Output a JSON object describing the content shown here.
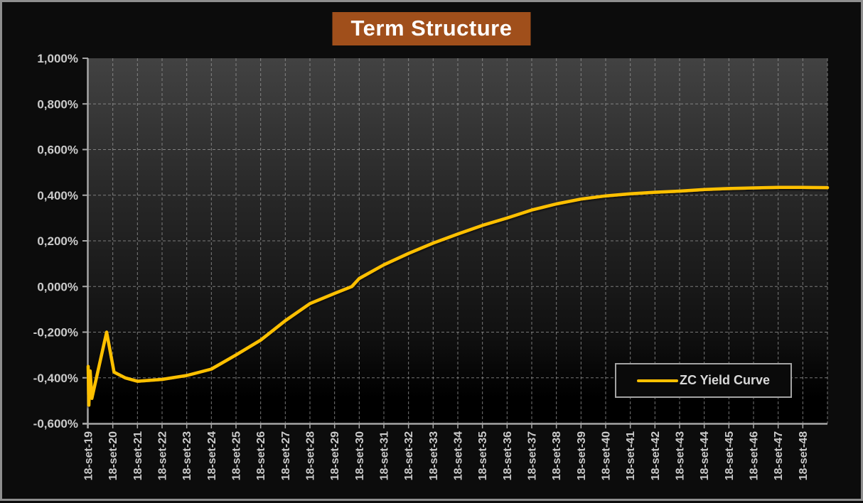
{
  "title": "Term Structure",
  "legend": {
    "label": "ZC Yield Curve"
  },
  "colors": {
    "title_bg": "#A04F1B",
    "title_text": "#FFFFFF",
    "curve": "#FFC000",
    "axis": "#A6A6A6",
    "grid": "#9B9B9B",
    "label_text": "#CBCBCB",
    "legend_text": "#D9D9D9",
    "plot_bg_top": "#424242",
    "plot_bg_bottom": "#000000",
    "page_bg": "#0C0C0C"
  },
  "chart_data": {
    "type": "line",
    "title": "Term Structure",
    "xlabel": "",
    "ylabel": "",
    "grid": true,
    "legend_position": "inside-bottom-right",
    "y_format": "percent_comma_decimal",
    "ylim": [
      -0.6,
      1.0
    ],
    "xlim_years": [
      0,
      30
    ],
    "y_tick_values": [
      1.0,
      0.8,
      0.6,
      0.4,
      0.2,
      0.0,
      -0.2,
      -0.4,
      -0.6
    ],
    "y_tick_labels": [
      "1,000%",
      "0,800%",
      "0,600%",
      "0,400%",
      "0,200%",
      "0,000%",
      "-0,200%",
      "-0,400%",
      "-0,600%"
    ],
    "x_tick_labels": [
      "18-set-19",
      "18-set-20",
      "18-set-21",
      "18-set-22",
      "18-set-23",
      "18-set-24",
      "18-set-25",
      "18-set-26",
      "18-set-27",
      "18-set-28",
      "18-set-29",
      "18-set-30",
      "18-set-31",
      "18-set-32",
      "18-set-33",
      "18-set-34",
      "18-set-35",
      "18-set-36",
      "18-set-37",
      "18-set-38",
      "18-set-39",
      "18-set-40",
      "18-set-41",
      "18-set-42",
      "18-set-43",
      "18-set-44",
      "18-set-45",
      "18-set-46",
      "18-set-47",
      "18-set-48"
    ],
    "x_unit": "years_after_18-set-19",
    "series": [
      {
        "name": "ZC Yield Curve",
        "points_year_pct": [
          [
            0,
            -0.35
          ],
          [
            0.03,
            -0.52
          ],
          [
            0.08,
            -0.37
          ],
          [
            0.15,
            -0.49
          ],
          [
            0.75,
            -0.2
          ],
          [
            1.05,
            -0.375
          ],
          [
            1.5,
            -0.4
          ],
          [
            2,
            -0.415
          ],
          [
            3,
            -0.407
          ],
          [
            4,
            -0.39
          ],
          [
            5,
            -0.362
          ],
          [
            6,
            -0.3
          ],
          [
            7,
            -0.235
          ],
          [
            8,
            -0.15
          ],
          [
            9,
            -0.075
          ],
          [
            10,
            -0.03
          ],
          [
            10.7,
            0.0
          ],
          [
            11,
            0.035
          ],
          [
            12,
            0.095
          ],
          [
            13,
            0.145
          ],
          [
            14,
            0.19
          ],
          [
            15,
            0.23
          ],
          [
            16,
            0.268
          ],
          [
            17,
            0.3
          ],
          [
            18,
            0.335
          ],
          [
            19,
            0.362
          ],
          [
            20,
            0.383
          ],
          [
            21,
            0.397
          ],
          [
            22,
            0.406
          ],
          [
            23,
            0.413
          ],
          [
            24,
            0.418
          ],
          [
            25,
            0.425
          ],
          [
            26,
            0.429
          ],
          [
            27,
            0.432
          ],
          [
            28,
            0.434
          ],
          [
            29,
            0.434
          ],
          [
            30,
            0.433
          ]
        ]
      }
    ]
  }
}
